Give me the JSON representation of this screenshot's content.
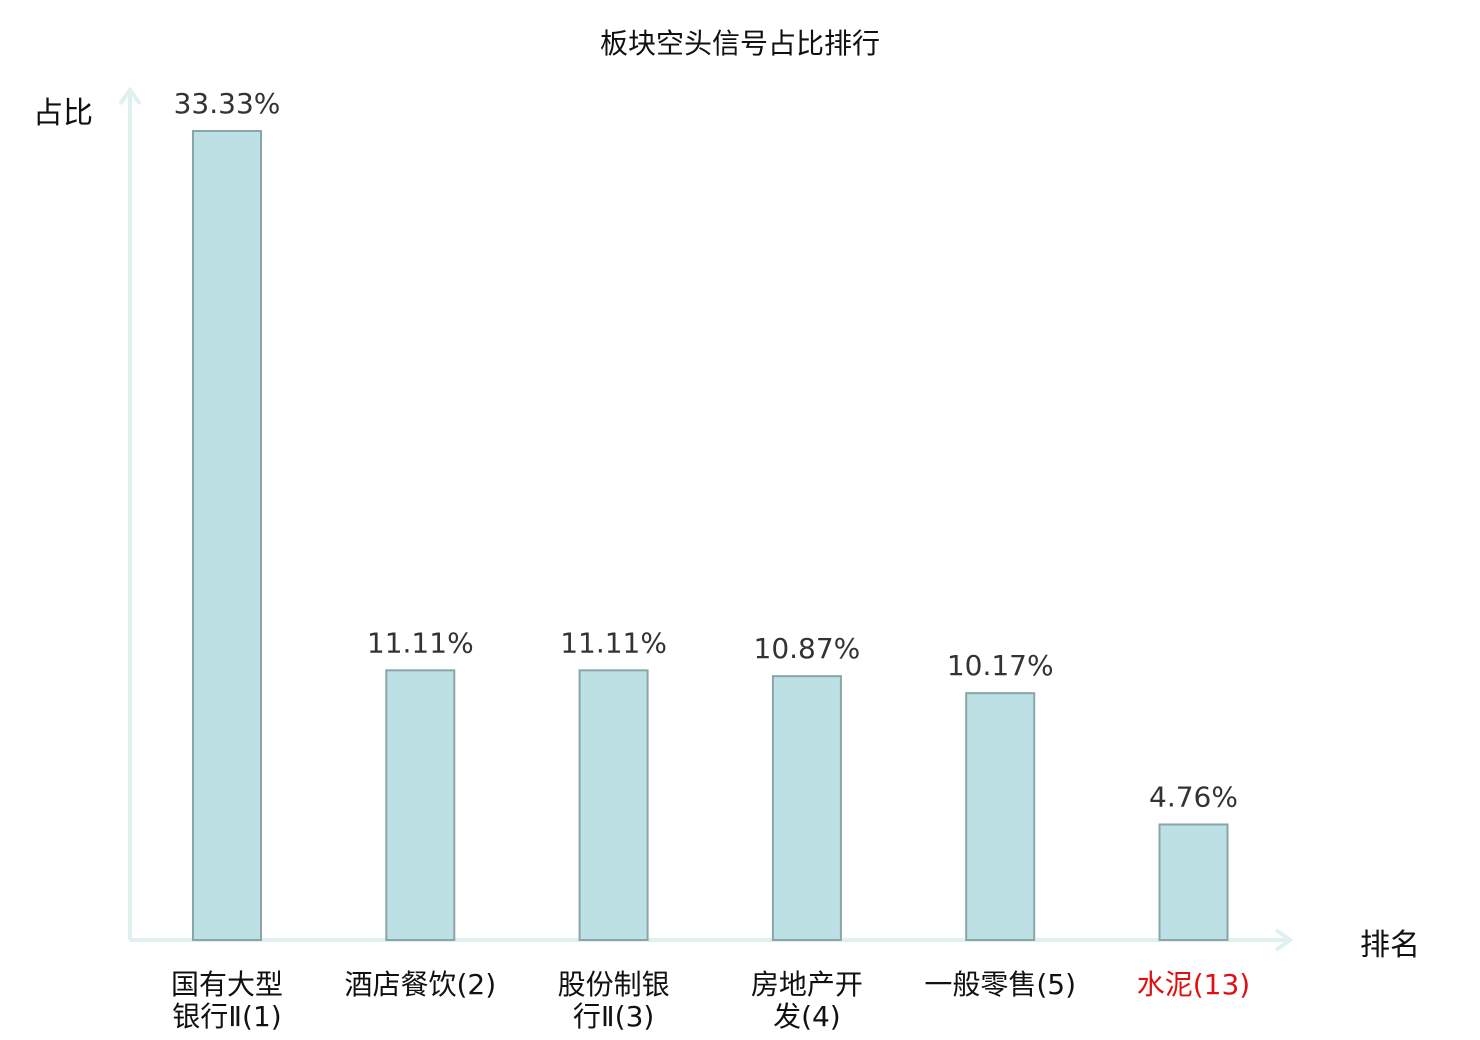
{
  "chart_data": {
    "type": "bar",
    "title": "板块空头信号占比排行",
    "ylabel": "占比",
    "xlabel": "排名",
    "categories": [
      {
        "name": "国有大型银行Ⅱ",
        "rank": "(1)",
        "highlight": false
      },
      {
        "name": "酒店餐饮",
        "rank": "(2)",
        "highlight": false
      },
      {
        "name": "股份制银行Ⅱ",
        "rank": "(3)",
        "highlight": false
      },
      {
        "name": "房地产开发",
        "rank": "(4)",
        "highlight": false
      },
      {
        "name": "一般零售",
        "rank": "(5)",
        "highlight": false
      },
      {
        "name": "水泥",
        "rank": "(13)",
        "highlight": true
      }
    ],
    "values": [
      33.33,
      11.11,
      11.11,
      10.87,
      10.17,
      4.76
    ],
    "value_labels": [
      "33.33%",
      "11.11%",
      "11.11%",
      "10.87%",
      "10.17%",
      "4.76%"
    ],
    "tick_lines": [
      [
        "国有大型",
        "银行Ⅱ(1)"
      ],
      [
        "酒店餐饮(2)"
      ],
      [
        "股份制银",
        "行Ⅱ(3)"
      ],
      [
        "房地产开",
        "发(4)"
      ],
      [
        "一般零售(5)"
      ],
      [
        "水泥(13)"
      ]
    ],
    "ylim": [
      0,
      35
    ],
    "grid": false,
    "colors": {
      "bar_fill": "#bce0e3",
      "bar_stroke": "#8aa5a8",
      "axis": "#dff1ef",
      "highlight_text": "#e01010",
      "normal_text": "#111111",
      "value_text": "#333333"
    }
  }
}
